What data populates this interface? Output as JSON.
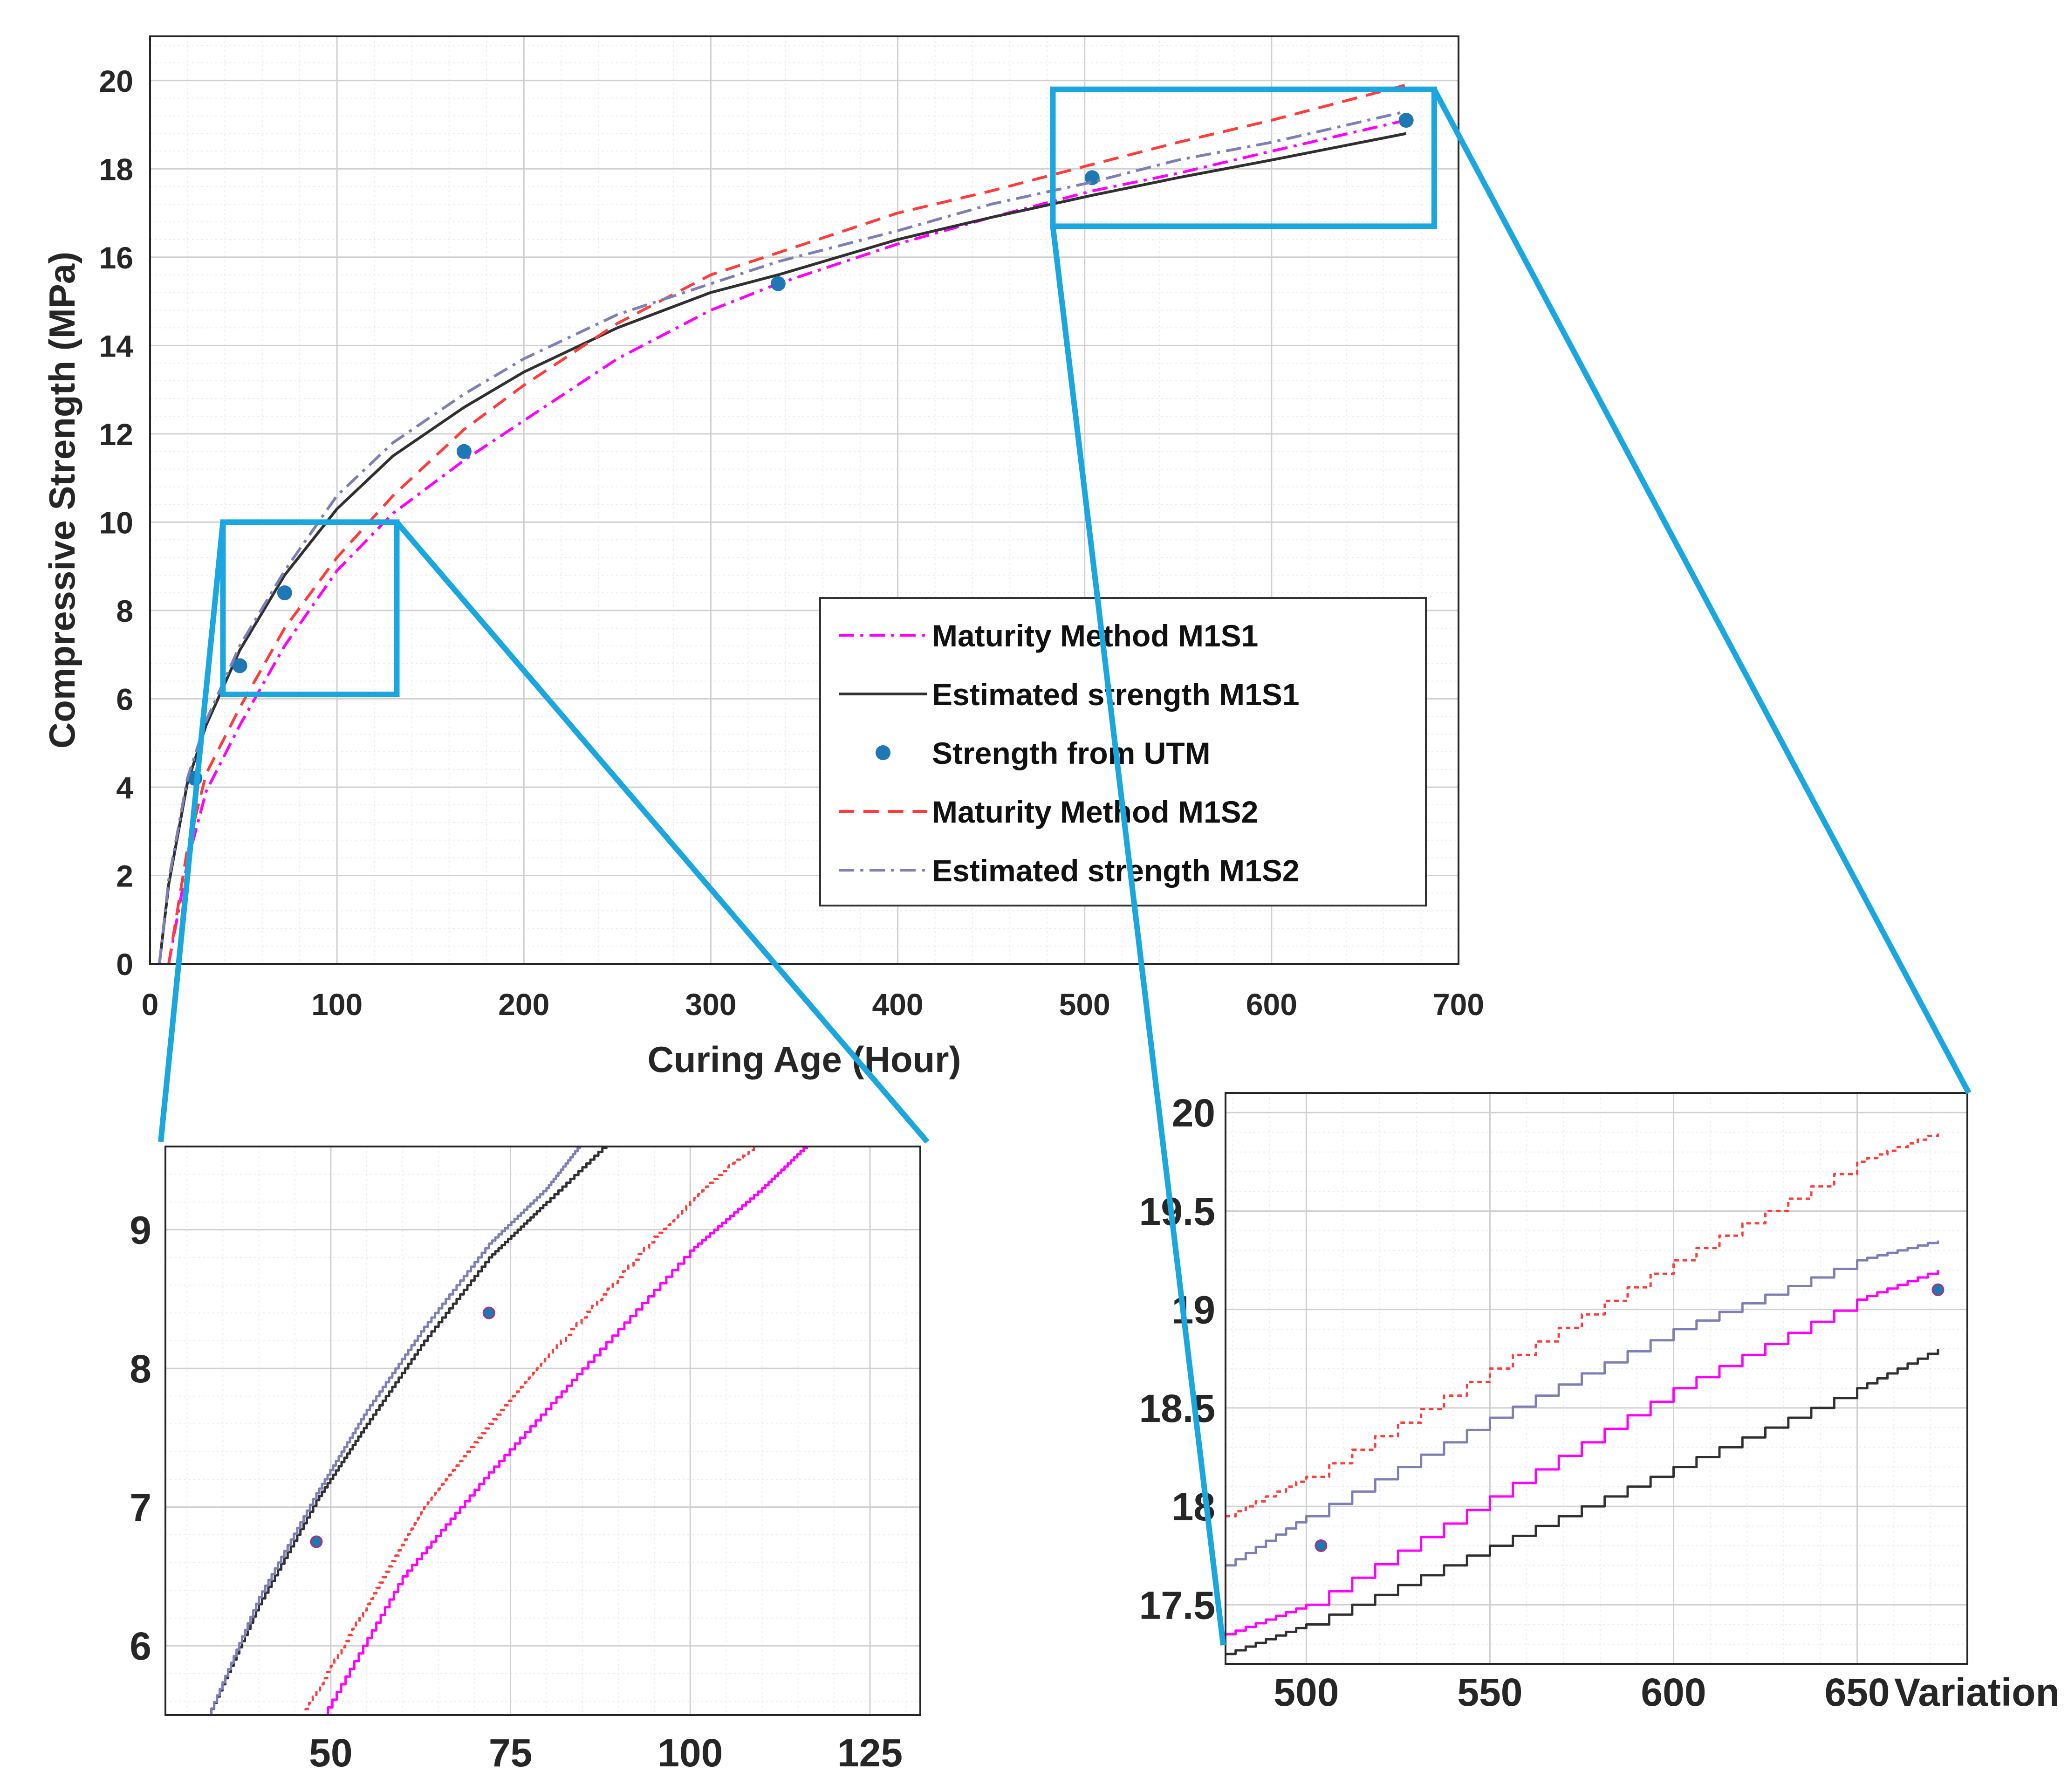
{
  "chart_data": [
    {
      "type": "line",
      "id": "main",
      "xlabel": "Curing Age (Hour)",
      "ylabel": "Compressive Strength (MPa)",
      "xlim": [
        0,
        700
      ],
      "ylim": [
        0,
        21
      ],
      "xticks": [
        0,
        100,
        200,
        300,
        400,
        500,
        600,
        700
      ],
      "yticks": [
        0,
        2,
        4,
        6,
        8,
        10,
        12,
        14,
        16,
        18,
        20
      ],
      "grid": true,
      "legend_position": "center-right",
      "series": [
        {
          "name": "Maturity Method M1S1",
          "style": "dash-dot",
          "color": "#ff00ff",
          "x": [
            10,
            20,
            30,
            48,
            72,
            100,
            130,
            168,
            200,
            250,
            300,
            336,
            400,
            450,
            504,
            550,
            600,
            672
          ],
          "y": [
            0,
            2.3,
            3.9,
            5.4,
            7.2,
            8.9,
            10.2,
            11.4,
            12.3,
            13.7,
            14.8,
            15.4,
            16.3,
            16.9,
            17.5,
            17.9,
            18.4,
            19.1
          ]
        },
        {
          "name": "Estimated strength M1S1",
          "style": "solid",
          "color": "#303030",
          "x": [
            5,
            10,
            20,
            30,
            48,
            72,
            100,
            130,
            168,
            200,
            250,
            300,
            336,
            400,
            450,
            504,
            550,
            600,
            672
          ],
          "y": [
            0,
            1.8,
            4.1,
            5.4,
            7.1,
            8.8,
            10.3,
            11.5,
            12.6,
            13.4,
            14.4,
            15.2,
            15.6,
            16.4,
            16.9,
            17.4,
            17.8,
            18.2,
            18.8
          ]
        },
        {
          "name": "Strength from UTM",
          "style": "marker",
          "color": "#1f77b4",
          "x": [
            24,
            48,
            72,
            168,
            336,
            504,
            672
          ],
          "y": [
            4.2,
            6.75,
            8.4,
            11.6,
            15.4,
            17.8,
            19.1
          ]
        },
        {
          "name": "Maturity Method M1S2",
          "style": "dashed",
          "color": "#ff3b3b",
          "x": [
            10,
            20,
            30,
            48,
            72,
            100,
            130,
            168,
            200,
            250,
            300,
            336,
            400,
            450,
            504,
            550,
            600,
            672
          ],
          "y": [
            0,
            2.6,
            4.3,
            5.8,
            7.6,
            9.2,
            10.6,
            12.1,
            13.1,
            14.5,
            15.6,
            16.1,
            17.0,
            17.5,
            18.1,
            18.6,
            19.1,
            19.9
          ]
        },
        {
          "name": "Estimated strength M1S2",
          "style": "dash-dot",
          "color": "#7f7fb8",
          "x": [
            5,
            10,
            20,
            30,
            48,
            72,
            100,
            130,
            168,
            200,
            250,
            300,
            336,
            400,
            450,
            504,
            550,
            600,
            672
          ],
          "y": [
            0,
            1.9,
            4.2,
            5.5,
            7.2,
            8.9,
            10.6,
            11.8,
            12.9,
            13.7,
            14.7,
            15.4,
            15.9,
            16.6,
            17.2,
            17.7,
            18.2,
            18.6,
            19.3
          ]
        }
      ]
    },
    {
      "type": "line",
      "id": "inset-left",
      "xlim": [
        27,
        132
      ],
      "ylim": [
        5.5,
        9.6
      ],
      "xticks": [
        50,
        75,
        100,
        125
      ],
      "yticks": [
        6,
        7,
        8,
        9
      ],
      "grid": true,
      "series": [
        {
          "name": "Maturity Method M1S1",
          "color": "#ff00ff",
          "x": [
            49,
            60,
            72,
            85,
            100,
            110,
            118
          ],
          "y": [
            5.5,
            6.5,
            7.25,
            8.0,
            8.85,
            9.3,
            9.7
          ]
        },
        {
          "name": "Estimated strength M1S1",
          "color": "#303030",
          "x": [
            33,
            40,
            48,
            55,
            63,
            72,
            80,
            90
          ],
          "y": [
            5.5,
            6.3,
            7.05,
            7.6,
            8.2,
            8.8,
            9.2,
            9.7
          ]
        },
        {
          "name": "Strength from UTM",
          "color": "#1f77b4",
          "x": [
            48,
            72
          ],
          "y": [
            6.75,
            8.4
          ]
        },
        {
          "name": "Maturity Method M1S2",
          "color": "#ff3b3b",
          "x": [
            46,
            55,
            63,
            72,
            82,
            95,
            105,
            112
          ],
          "y": [
            5.5,
            6.3,
            7.0,
            7.6,
            8.2,
            8.95,
            9.45,
            9.7
          ]
        },
        {
          "name": "Estimated strength M1S2",
          "color": "#7f7fb8",
          "x": [
            33,
            40,
            48,
            55,
            63,
            72,
            80,
            86
          ],
          "y": [
            5.5,
            6.35,
            7.1,
            7.7,
            8.3,
            8.9,
            9.3,
            9.7
          ]
        }
      ]
    },
    {
      "type": "line",
      "id": "inset-right",
      "xlim": [
        478,
        680
      ],
      "ylim": [
        17.2,
        20.1
      ],
      "xticks": [
        500,
        550,
        600,
        650
      ],
      "xtick_labels": [
        "500",
        "550",
        "600",
        "650"
      ],
      "yticks": [
        17.5,
        18,
        18.5,
        19,
        19.5,
        20
      ],
      "ytick_labels": [
        "17.5",
        "18",
        "18.5",
        "19",
        "19.5",
        "20"
      ],
      "grid": true,
      "series": [
        {
          "name": "Maturity Method M1S1",
          "color": "#ff00ff",
          "x": [
            478,
            500,
            550,
            600,
            650,
            672
          ],
          "y": [
            17.35,
            17.5,
            18.05,
            18.6,
            19.05,
            19.2
          ]
        },
        {
          "name": "Estimated strength M1S1",
          "color": "#303030",
          "x": [
            478,
            500,
            550,
            600,
            650,
            672
          ],
          "y": [
            17.25,
            17.4,
            17.8,
            18.2,
            18.6,
            18.8
          ]
        },
        {
          "name": "Strength from UTM",
          "color": "#1f77b4",
          "x": [
            504,
            672
          ],
          "y": [
            17.8,
            19.1
          ]
        },
        {
          "name": "Maturity Method M1S2",
          "color": "#ff3b3b",
          "x": [
            478,
            500,
            550,
            600,
            650,
            672
          ],
          "y": [
            17.95,
            18.15,
            18.7,
            19.25,
            19.75,
            19.9
          ]
        },
        {
          "name": "Estimated strength M1S2",
          "color": "#7f7fb8",
          "x": [
            478,
            500,
            550,
            600,
            650,
            672
          ],
          "y": [
            17.7,
            17.95,
            18.45,
            18.9,
            19.25,
            19.35
          ]
        }
      ]
    }
  ],
  "inset_right_extra_label": "Variation",
  "colors": {
    "zoom_box": "#1aa7e0",
    "grid_major": "#d0d0d0",
    "grid_minor": "#ececec",
    "axis": "#262626"
  }
}
